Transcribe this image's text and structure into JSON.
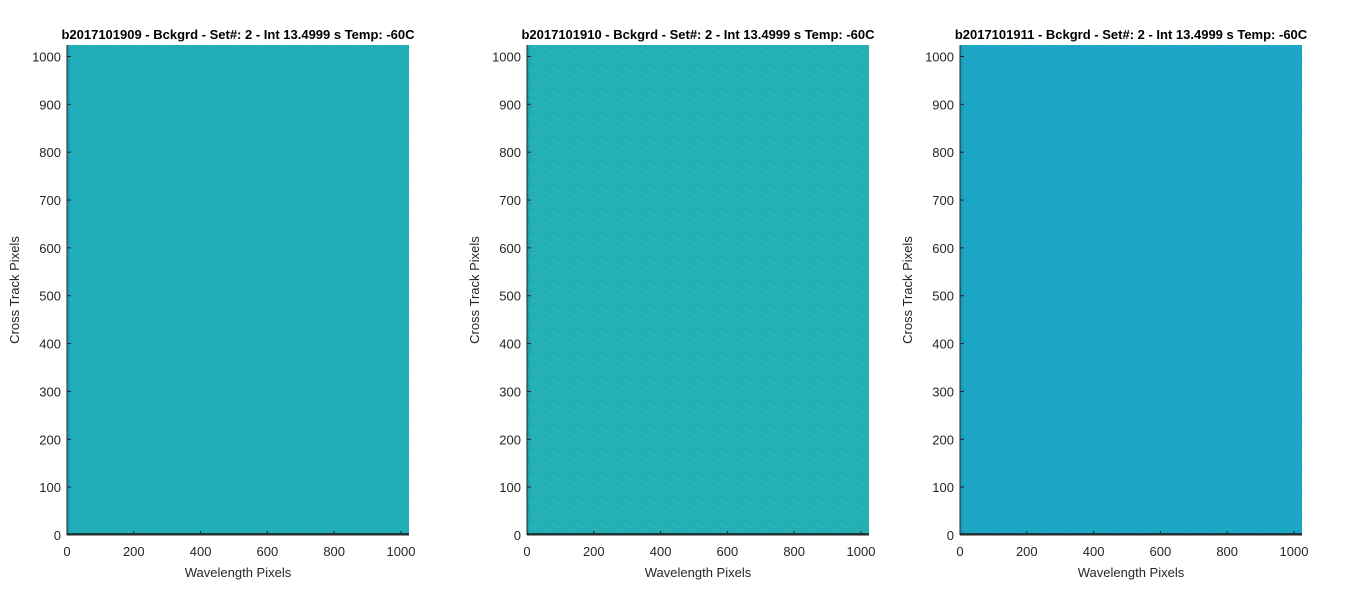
{
  "chart_data": [
    {
      "type": "heatmap",
      "title": "b2017101909 - Bckgrd - Set#: 2 - Int 13.4999 s Temp: -60C",
      "xlabel": "Wavelength Pixels",
      "ylabel": "Cross Track Pixels",
      "xlim": [
        0,
        1024
      ],
      "ylim": [
        0,
        1024
      ],
      "xticks": [
        0,
        200,
        400,
        600,
        800,
        1000
      ],
      "yticks": [
        0,
        100,
        200,
        300,
        400,
        500,
        600,
        700,
        800,
        900,
        1000
      ],
      "grid": false,
      "colormap": "parula",
      "base_color": "#1fadb9",
      "speckle_colors": [
        "#36b8a5",
        "#1a9fc8",
        "#4abf96"
      ],
      "bottom_row_color": "#1e3a3c"
    },
    {
      "type": "heatmap",
      "title": "b2017101910 - Bckgrd - Set#: 2 - Int 13.4999 s Temp: -60C",
      "xlabel": "Wavelength Pixels",
      "ylabel": "Cross Track Pixels",
      "xlim": [
        0,
        1024
      ],
      "ylim": [
        0,
        1024
      ],
      "xticks": [
        0,
        200,
        400,
        600,
        800,
        1000
      ],
      "yticks": [
        0,
        100,
        200,
        300,
        400,
        500,
        600,
        700,
        800,
        900,
        1000
      ],
      "grid": false,
      "colormap": "parula",
      "base_color": "#22b0b6",
      "speckle_colors": [
        "#3cbaa2",
        "#1ba2c5",
        "#52c193"
      ],
      "bottom_row_color": "#1e3a3c"
    },
    {
      "type": "heatmap",
      "title": "b2017101911 - Bckgrd - Set#: 2 - Int 13.4999 s Temp: -60C",
      "xlabel": "Wavelength Pixels",
      "ylabel": "Cross Track Pixels",
      "xlim": [
        0,
        1024
      ],
      "ylim": [
        0,
        1024
      ],
      "xticks": [
        0,
        200,
        400,
        600,
        800,
        1000
      ],
      "yticks": [
        0,
        100,
        200,
        300,
        400,
        500,
        600,
        700,
        800,
        900,
        1000
      ],
      "grid": false,
      "colormap": "parula",
      "base_color": "#1aa6c4",
      "speckle_colors": [
        "#26aeba",
        "#1698d0",
        "#30b3b0"
      ],
      "bottom_row_color": "#1e3a3c"
    }
  ]
}
